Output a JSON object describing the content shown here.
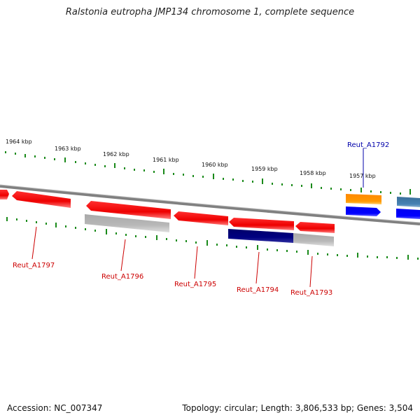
{
  "title": "Ralstonia eutropha JMP134 chromosome 1, complete sequence",
  "footer": {
    "accession": "Accession: NC_007347",
    "summary": "Topology: circular; Length: 3,806,533 bp; Genes: 3,504"
  },
  "scale_labels": [
    "1964 kbp",
    "1963 kbp",
    "1962 kbp",
    "1961 kbp",
    "1960 kbp",
    "1959 kbp",
    "1958 kbp",
    "1957 kbp"
  ],
  "genes": [
    {
      "name": "Reut_A1797",
      "color": "#cc0000"
    },
    {
      "name": "Reut_A1796",
      "color": "#cc0000"
    },
    {
      "name": "Reut_A1795",
      "color": "#cc0000"
    },
    {
      "name": "Reut_A1794",
      "color": "#cc0000"
    },
    {
      "name": "Reut_A1793",
      "color": "#cc0000"
    },
    {
      "name": "Reut_A1792",
      "color": "#0000aa"
    }
  ],
  "colors": {
    "tick": "#1a8a1a",
    "backbone": "#808080",
    "gene_red": "#ff0000",
    "gene_gray": "#b8b8b8",
    "gene_navy": "#000080",
    "gene_blue": "#0000ff",
    "gene_orange": "#ff9900",
    "gene_steel": "#4682b4"
  }
}
